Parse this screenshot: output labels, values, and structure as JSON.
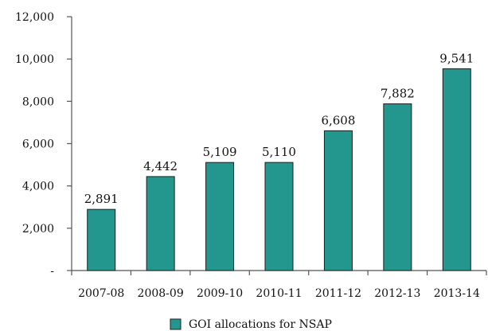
{
  "chart_data": {
    "type": "bar",
    "categories": [
      "2007-08",
      "2008-09",
      "2009-10",
      "2010-11",
      "2011-12",
      "2012-13",
      "2013-14"
    ],
    "series": [
      {
        "name": "GOI allocations for NSAP",
        "values": [
          2891,
          4442,
          5109,
          5110,
          6608,
          7882,
          9541
        ],
        "value_labels": [
          "2,891",
          "4,442",
          "5,109",
          "5,110",
          "6,608",
          "7,882",
          "9,541"
        ],
        "color": "#23978e"
      }
    ],
    "ylim": [
      0,
      12000
    ],
    "yticks": [
      0,
      2000,
      4000,
      6000,
      8000,
      10000,
      12000
    ],
    "ytick_labels": [
      "-",
      "2,000",
      "4,000",
      "6,000",
      "8,000",
      "10,000",
      "12,000"
    ],
    "grid": false,
    "legend": "bottom-center",
    "title": "",
    "xlabel": "",
    "ylabel": ""
  }
}
